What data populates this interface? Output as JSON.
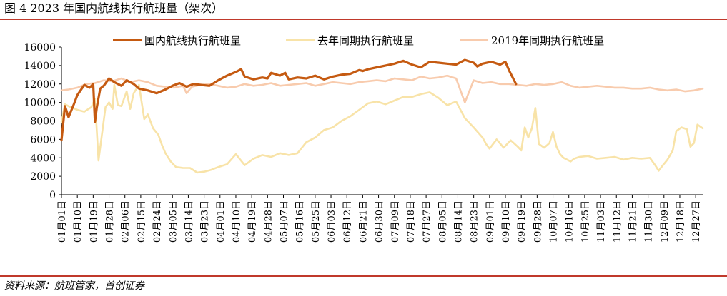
{
  "figure": {
    "title": "图 4 2023 年国内航线执行航班量（架次）",
    "source": "资料来源：航班管家，首创证券"
  },
  "chart_data": {
    "type": "line",
    "title": "图 4 2023 年国内航线执行航班量（架次）",
    "xlabel": "",
    "ylabel": "",
    "ylim": [
      0,
      16000
    ],
    "yticks": [
      0,
      2000,
      4000,
      6000,
      8000,
      10000,
      12000,
      14000,
      16000
    ],
    "x_range_days": [
      1,
      365
    ],
    "xtick_labels": [
      "01月01日",
      "01月10日",
      "01月19日",
      "01月28日",
      "02月06日",
      "02月15日",
      "02月24日",
      "03月05日",
      "03月14日",
      "03月23日",
      "04月01日",
      "04月10日",
      "04月19日",
      "04月28日",
      "05月07日",
      "05月16日",
      "05月25日",
      "06月03日",
      "06月12日",
      "06月21日",
      "06月30日",
      "07月09日",
      "07月18日",
      "07月27日",
      "08月05日",
      "08月14日",
      "08月23日",
      "09月01日",
      "09月10日",
      "09月19日",
      "09月28日",
      "10月07日",
      "10月16日",
      "10月25日",
      "11月03日",
      "11月12日",
      "11月21日",
      "11月30日",
      "12月09日",
      "12月18日",
      "12月27日"
    ],
    "legend_position": "top",
    "series": [
      {
        "name": "国内航线执行航班量",
        "color": "#c55a11",
        "day": [
          1,
          3,
          5,
          8,
          10,
          14,
          17,
          19,
          20,
          21,
          23,
          25,
          28,
          31,
          35,
          38,
          42,
          45,
          50,
          55,
          60,
          64,
          68,
          72,
          76,
          80,
          85,
          90,
          95,
          100,
          103,
          105,
          110,
          115,
          118,
          120,
          125,
          128,
          130,
          135,
          140,
          145,
          150,
          155,
          160,
          165,
          170,
          172,
          175,
          180,
          185,
          190,
          195,
          200,
          205,
          210,
          215,
          220,
          225,
          230,
          235,
          237,
          240,
          245,
          250,
          253,
          255,
          259,
          240,
          242,
          243,
          244,
          245
        ],
        "values": [
          5900,
          9600,
          8400,
          9800,
          10800,
          11900,
          11600,
          12000,
          7900,
          9400,
          11500,
          11800,
          12600,
          12200,
          11800,
          12400,
          12000,
          11500,
          11300,
          11000,
          11400,
          11800,
          12100,
          11700,
          12000,
          11900,
          11800,
          12400,
          12900,
          13300,
          13600,
          12800,
          12500,
          12700,
          12600,
          13200,
          12900,
          13200,
          12500,
          12700,
          12600,
          12900,
          12500,
          12800,
          13000,
          13100,
          13500,
          13400,
          13600,
          13800,
          14000,
          14200,
          14500,
          14100,
          13800,
          14400,
          14300,
          14200,
          14100,
          14600,
          14300,
          13900,
          14200,
          14400,
          14100,
          14400,
          13500,
          12000,
          14200,
          13800,
          14300,
          13900,
          14200
        ]
      },
      {
        "name": "去年同期执行航班量",
        "color": "#f8e3a8",
        "day": [
          1,
          3,
          6,
          10,
          14,
          18,
          20,
          22,
          26,
          28,
          30,
          31,
          33,
          35,
          38,
          40,
          42,
          45,
          48,
          50,
          53,
          56,
          58,
          60,
          63,
          66,
          70,
          74,
          78,
          82,
          86,
          90,
          95,
          100,
          105,
          110,
          115,
          120,
          125,
          130,
          135,
          140,
          145,
          150,
          155,
          160,
          165,
          170,
          175,
          180,
          185,
          190,
          195,
          200,
          205,
          210,
          215,
          220,
          225,
          230,
          235,
          240,
          242,
          244,
          248,
          252,
          256,
          260,
          262,
          264,
          266,
          268,
          270,
          272,
          275,
          278,
          280,
          282,
          284,
          286,
          288,
          290,
          292,
          295,
          300,
          305,
          310,
          315,
          320,
          325,
          330,
          335,
          338,
          340,
          342,
          345,
          348,
          350,
          353,
          356,
          358,
          360,
          362,
          365
        ],
        "values": [
          7900,
          9800,
          9500,
          9200,
          9000,
          9500,
          10400,
          3700,
          9500,
          10000,
          9300,
          11900,
          9700,
          9600,
          11200,
          9300,
          11000,
          11900,
          8200,
          8700,
          7200,
          6500,
          5400,
          4500,
          3600,
          3000,
          2900,
          2900,
          2400,
          2500,
          2700,
          3000,
          3300,
          4400,
          3200,
          3900,
          4300,
          4100,
          4500,
          4300,
          4500,
          5700,
          6200,
          7000,
          7300,
          8000,
          8500,
          9200,
          9900,
          10100,
          9800,
          10200,
          10600,
          10600,
          10900,
          11100,
          10500,
          9700,
          10100,
          8300,
          7300,
          6200,
          5500,
          5000,
          6000,
          5100,
          5900,
          5200,
          4800,
          7300,
          6200,
          7200,
          9400,
          5500,
          5100,
          5600,
          6800,
          5200,
          4400,
          4000,
          3800,
          3600,
          3900,
          4100,
          4200,
          3900,
          4000,
          4100,
          3800,
          4000,
          3900,
          4000,
          3200,
          2600,
          3100,
          3800,
          4800,
          6900,
          7300,
          7100,
          5200,
          5600,
          7600,
          7200
        ]
      },
      {
        "name": "2019年同期执行航班量",
        "color": "#f8cbad",
        "day": [
          1,
          5,
          10,
          15,
          20,
          25,
          30,
          35,
          40,
          45,
          50,
          55,
          60,
          65,
          70,
          72,
          75,
          80,
          85,
          90,
          95,
          100,
          105,
          110,
          115,
          120,
          125,
          130,
          135,
          140,
          145,
          150,
          155,
          160,
          165,
          170,
          175,
          180,
          185,
          190,
          195,
          200,
          205,
          210,
          215,
          220,
          225,
          230,
          235,
          240,
          245,
          250,
          255,
          260,
          265,
          270,
          275,
          280,
          285,
          290,
          295,
          300,
          305,
          310,
          315,
          320,
          325,
          330,
          335,
          340,
          345,
          350,
          355,
          360,
          365
        ],
        "values": [
          11300,
          11400,
          11600,
          12000,
          12100,
          12400,
          12300,
          12600,
          12200,
          12400,
          12200,
          11800,
          11700,
          11600,
          11800,
          11000,
          11700,
          11900,
          12000,
          11800,
          11600,
          11700,
          12000,
          11800,
          11900,
          12100,
          11800,
          11900,
          12000,
          12100,
          11800,
          12000,
          12200,
          12100,
          12000,
          12200,
          12300,
          12400,
          12300,
          12600,
          12500,
          12400,
          12800,
          12600,
          12700,
          12900,
          12600,
          10000,
          12400,
          12100,
          12200,
          12000,
          12000,
          11900,
          11800,
          12000,
          11900,
          12000,
          12200,
          11800,
          11600,
          11700,
          11800,
          11700,
          11600,
          11600,
          11500,
          11500,
          11600,
          11400,
          11300,
          11400,
          11200,
          11300,
          11500
        ]
      }
    ]
  }
}
